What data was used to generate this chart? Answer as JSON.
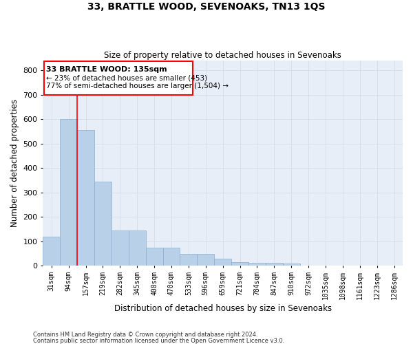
{
  "title": "33, BRATTLE WOOD, SEVENOAKS, TN13 1QS",
  "subtitle": "Size of property relative to detached houses in Sevenoaks",
  "xlabel": "Distribution of detached houses by size in Sevenoaks",
  "ylabel": "Number of detached properties",
  "footnote1": "Contains HM Land Registry data © Crown copyright and database right 2024.",
  "footnote2": "Contains public sector information licensed under the Open Government Licence v3.0.",
  "categories": [
    "31sqm",
    "94sqm",
    "157sqm",
    "219sqm",
    "282sqm",
    "345sqm",
    "408sqm",
    "470sqm",
    "533sqm",
    "596sqm",
    "659sqm",
    "721sqm",
    "784sqm",
    "847sqm",
    "910sqm",
    "972sqm",
    "1035sqm",
    "1098sqm",
    "1161sqm",
    "1223sqm",
    "1286sqm"
  ],
  "values": [
    120,
    600,
    555,
    345,
    145,
    145,
    75,
    75,
    50,
    50,
    30,
    15,
    13,
    12,
    8,
    0,
    0,
    0,
    0,
    0,
    0
  ],
  "bar_color": "#b8d0e8",
  "bar_edge_color": "#8ab0d0",
  "ylim": [
    0,
    840
  ],
  "yticks": [
    0,
    100,
    200,
    300,
    400,
    500,
    600,
    700,
    800
  ],
  "property_line_x": 1.5,
  "annotation_line1": "33 BRATTLE WOOD: 135sqm",
  "annotation_line2": "← 23% of detached houses are smaller (453)",
  "annotation_line3": "77% of semi-detached houses are larger (1,504) →",
  "grid_color": "#d0d8e8",
  "background_color": "#ffffff",
  "plot_bg_color": "#e8eef8"
}
